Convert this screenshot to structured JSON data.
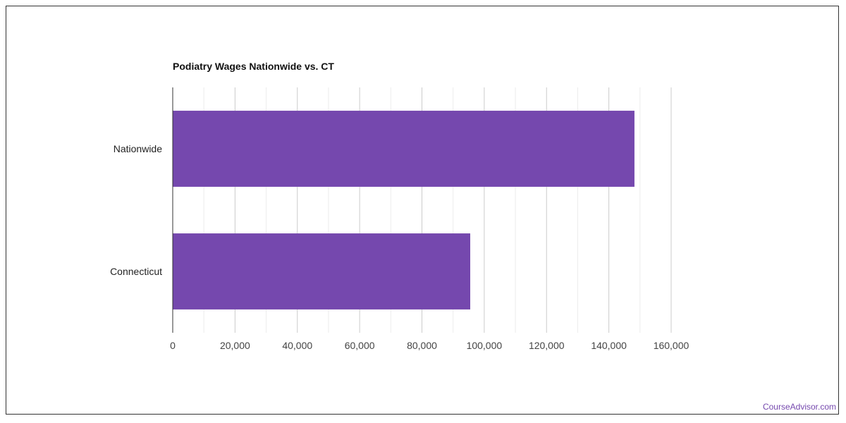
{
  "chart_data": {
    "type": "bar",
    "orientation": "horizontal",
    "title": "Podiatry Wages Nationwide vs. CT",
    "categories": [
      "Nationwide",
      "Connecticut"
    ],
    "values": [
      148220,
      95500
    ],
    "xlabel": "",
    "ylabel": "",
    "xlim": [
      0,
      160000
    ],
    "x_ticks": [
      "0",
      "20,000",
      "40,000",
      "60,000",
      "80,000",
      "100,000",
      "120,000",
      "140,000",
      "160,000"
    ],
    "grid": true,
    "legend": "none",
    "bar_color": "#7548ae"
  },
  "watermark": "CourseAdvisor.com"
}
